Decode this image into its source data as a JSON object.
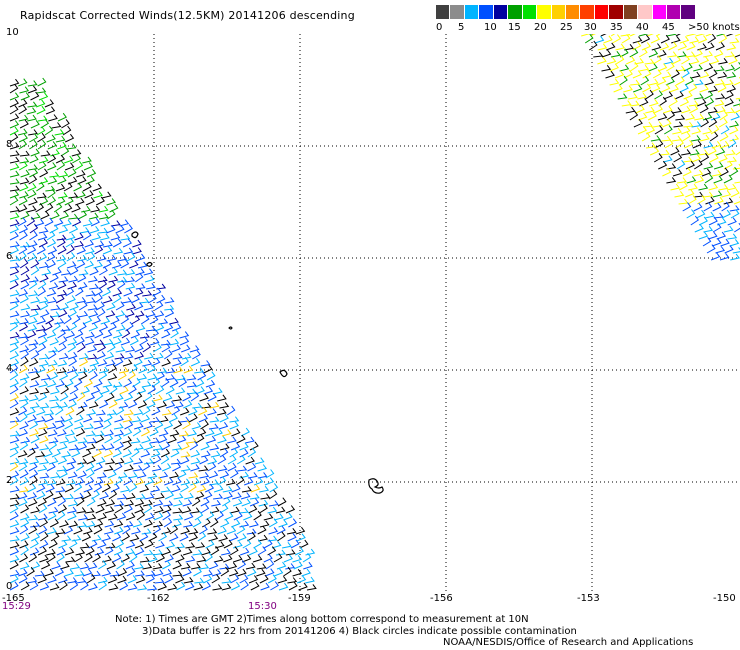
{
  "header": {
    "title": "Rapidscat Corrected Winds(12.5KM) 20141206 descending"
  },
  "legend": {
    "colors": [
      "#404040",
      "#8c8c8c",
      "#00b4ff",
      "#0050ff",
      "#0000a0",
      "#00a000",
      "#00e000",
      "#ffff00",
      "#ffd000",
      "#ff8c00",
      "#ff4000",
      "#ff0000",
      "#a00000",
      "#804020",
      "#ffc8c8",
      "#ff00ff",
      "#b000b0",
      "#600080"
    ],
    "labels": [
      "0",
      "5",
      "10",
      "15",
      "20",
      "25",
      "30",
      "35",
      "40",
      "45",
      ">50 knots"
    ]
  },
  "map": {
    "lat_labels": [
      "10",
      "8",
      "6",
      "4",
      "2",
      "0"
    ],
    "lon_labels": [
      "-165",
      "-162",
      "-159",
      "-156",
      "-153",
      "-150"
    ],
    "time_labels": [
      "15:29",
      "15:30"
    ]
  },
  "notes": {
    "line1": "Note: 1) Times are GMT 2)Times along bottom correspond to measurement at 10N",
    "line2": "3)Data buffer is 22 hrs from 20141206 4) Black circles indicate possible contamination",
    "line3": "NOAA/NESDIS/Office of Research and Applications"
  }
}
